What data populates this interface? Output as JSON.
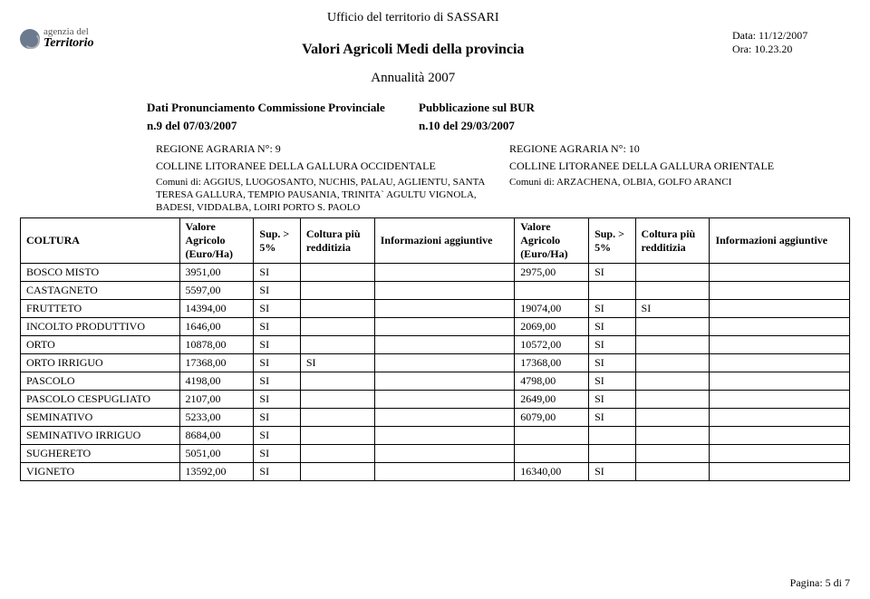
{
  "header": {
    "ufficio": "Ufficio del territorio di  SASSARI",
    "main_title": "Valori Agricoli Medi della provincia",
    "annualita": "Annualità  2007",
    "logo_line1": "agenzia del",
    "logo_line2": "Territorio",
    "data_label": "Data: 11/12/2007",
    "ora_label": "Ora: 10.23.20"
  },
  "subheader": {
    "left_label": "Dati Pronunciamento Commissione Provinciale",
    "right_label": "Pubblicazione sul BUR",
    "left_val": "n.9 del  07/03/2007",
    "right_val": "n.10 del 29/03/2007"
  },
  "regions": {
    "left": {
      "num": "REGIONE AGRARIA N°:  9",
      "name": "COLLINE LITORANEE DELLA GALLURA OCCIDENTALE",
      "comuni": "Comuni di: AGGIUS, LUOGOSANTO, NUCHIS, PALAU, AGLIENTU, SANTA TERESA GALLURA, TEMPIO PAUSANIA, TRINITA` AGULTU VIGNOLA, BADESI, VIDDALBA, LOIRI PORTO S. PAOLO"
    },
    "right": {
      "num": "REGIONE AGRARIA N°:  10",
      "name": "COLLINE LITORANEE DELLA GALLURA ORIENTALE",
      "comuni": "Comuni di: ARZACHENA, OLBIA, GOLFO ARANCI"
    }
  },
  "columns": {
    "coltura": "COLTURA",
    "valore": "Valore Agricolo (Euro/Ha)",
    "sup": "Sup. > 5%",
    "red": "Coltura più redditizia",
    "info": "Informazioni aggiuntive"
  },
  "rows": [
    {
      "coltura": "BOSCO MISTO",
      "v1": "3951,00",
      "s1": "SI",
      "r1": "",
      "i1": "",
      "v2": "2975,00",
      "s2": "SI",
      "r2": "",
      "i2": ""
    },
    {
      "coltura": "CASTAGNETO",
      "v1": "5597,00",
      "s1": "SI",
      "r1": "",
      "i1": "",
      "v2": "",
      "s2": "",
      "r2": "",
      "i2": ""
    },
    {
      "coltura": "FRUTTETO",
      "v1": "14394,00",
      "s1": "SI",
      "r1": "",
      "i1": "",
      "v2": "19074,00",
      "s2": "SI",
      "r2": "SI",
      "i2": ""
    },
    {
      "coltura": "INCOLTO PRODUTTIVO",
      "v1": "1646,00",
      "s1": "SI",
      "r1": "",
      "i1": "",
      "v2": "2069,00",
      "s2": "SI",
      "r2": "",
      "i2": ""
    },
    {
      "coltura": "ORTO",
      "v1": "10878,00",
      "s1": "SI",
      "r1": "",
      "i1": "",
      "v2": "10572,00",
      "s2": "SI",
      "r2": "",
      "i2": ""
    },
    {
      "coltura": "ORTO IRRIGUO",
      "v1": "17368,00",
      "s1": "SI",
      "r1": "SI",
      "i1": "",
      "v2": "17368,00",
      "s2": "SI",
      "r2": "",
      "i2": ""
    },
    {
      "coltura": "PASCOLO",
      "v1": "4198,00",
      "s1": "SI",
      "r1": "",
      "i1": "",
      "v2": "4798,00",
      "s2": "SI",
      "r2": "",
      "i2": ""
    },
    {
      "coltura": "PASCOLO CESPUGLIATO",
      "v1": "2107,00",
      "s1": "SI",
      "r1": "",
      "i1": "",
      "v2": "2649,00",
      "s2": "SI",
      "r2": "",
      "i2": ""
    },
    {
      "coltura": "SEMINATIVO",
      "v1": "5233,00",
      "s1": "SI",
      "r1": "",
      "i1": "",
      "v2": "6079,00",
      "s2": "SI",
      "r2": "",
      "i2": ""
    },
    {
      "coltura": "SEMINATIVO IRRIGUO",
      "v1": "8684,00",
      "s1": "SI",
      "r1": "",
      "i1": "",
      "v2": "",
      "s2": "",
      "r2": "",
      "i2": ""
    },
    {
      "coltura": "SUGHERETO",
      "v1": "5051,00",
      "s1": "SI",
      "r1": "",
      "i1": "",
      "v2": "",
      "s2": "",
      "r2": "",
      "i2": ""
    },
    {
      "coltura": "VIGNETO",
      "v1": "13592,00",
      "s1": "SI",
      "r1": "",
      "i1": "",
      "v2": "16340,00",
      "s2": "SI",
      "r2": "",
      "i2": ""
    }
  ],
  "footer": {
    "page": "Pagina: 5 di 7"
  },
  "colors": {
    "text": "#000000",
    "bg": "#ffffff",
    "border": "#000000"
  }
}
